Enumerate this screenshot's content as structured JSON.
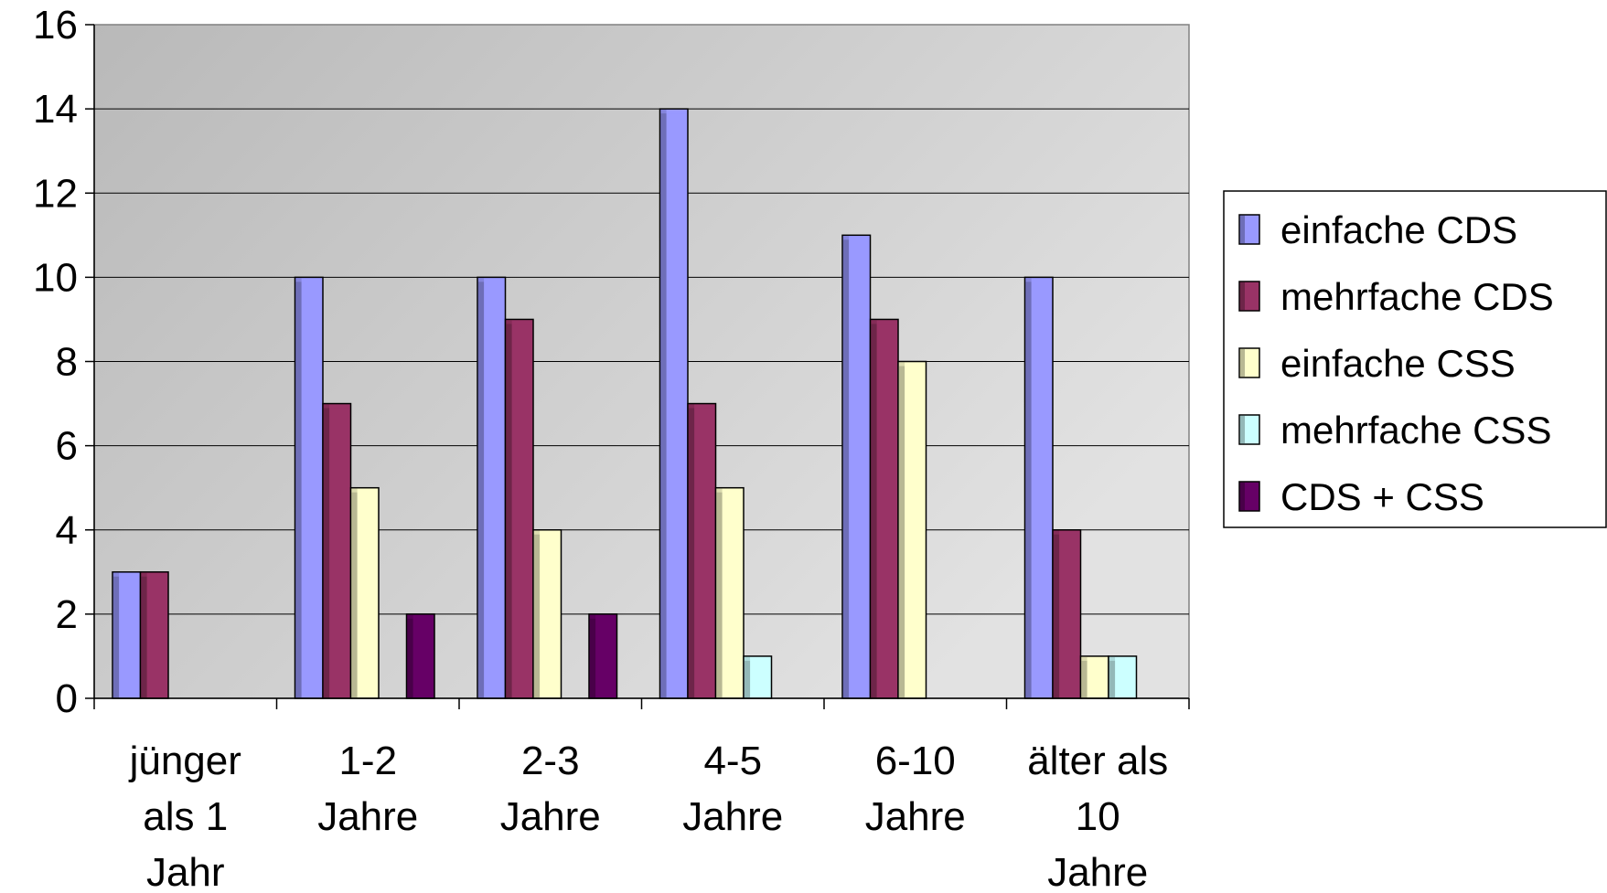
{
  "chart_data": {
    "type": "bar",
    "categories": [
      [
        "jünger",
        "als 1",
        "Jahr"
      ],
      [
        "1-2",
        "Jahre"
      ],
      [
        "2-3",
        "Jahre"
      ],
      [
        "4-5",
        "Jahre"
      ],
      [
        "6-10",
        "Jahre"
      ],
      [
        "älter als",
        "10",
        "Jahre"
      ]
    ],
    "series": [
      {
        "name": "einfache CDS",
        "color": "#9999FF",
        "values": [
          3,
          10,
          10,
          14,
          11,
          10
        ]
      },
      {
        "name": "mehrfache CDS",
        "color": "#993366",
        "values": [
          3,
          7,
          9,
          7,
          9,
          4
        ]
      },
      {
        "name": "einfache CSS",
        "color": "#FFFFCC",
        "values": [
          0,
          5,
          4,
          5,
          8,
          1
        ]
      },
      {
        "name": "mehrfache CSS",
        "color": "#CCFFFF",
        "values": [
          0,
          0,
          0,
          1,
          0,
          1
        ]
      },
      {
        "name": "CDS + CSS",
        "color": "#660066",
        "values": [
          0,
          2,
          2,
          0,
          0,
          0
        ]
      }
    ],
    "ylim": [
      0,
      16
    ],
    "yticks": [
      0,
      2,
      4,
      6,
      8,
      10,
      12,
      14,
      16
    ],
    "grid": true,
    "legend": "right",
    "xlabel": "",
    "ylabel": ""
  }
}
